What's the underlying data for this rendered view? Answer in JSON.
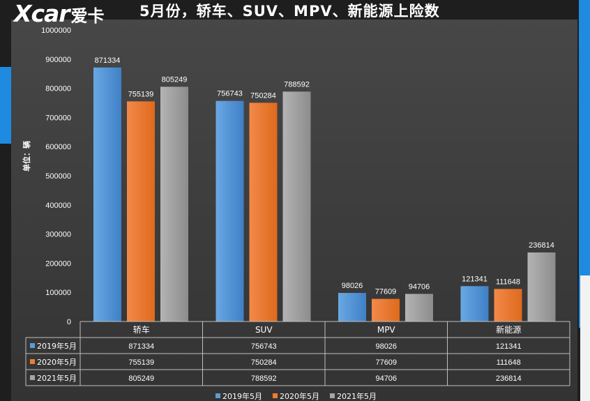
{
  "header": {
    "logo_x": "Xcar",
    "logo_cn": "爱卡",
    "title": "5月份，轿车、SUV、MPV、新能源上险数"
  },
  "colors": {
    "series": [
      "#5b9bd5",
      "#ed7d31",
      "#a5a5a5"
    ],
    "background": "#3c3c3c",
    "text": "#ffffff"
  },
  "chart_data": {
    "type": "bar",
    "title": "",
    "ylabel": "单位：辆",
    "xlabel": "",
    "ylim": [
      0,
      1000000
    ],
    "yticks": [
      0,
      100000,
      200000,
      300000,
      400000,
      500000,
      600000,
      700000,
      800000,
      900000,
      1000000
    ],
    "categories": [
      "轿车",
      "SUV",
      "MPV",
      "新能源"
    ],
    "series": [
      {
        "name": "2019年5月",
        "values": [
          871334,
          756743,
          98026,
          121341
        ]
      },
      {
        "name": "2020年5月",
        "values": [
          755139,
          750284,
          77609,
          111648
        ]
      },
      {
        "name": "2021年5月",
        "values": [
          805249,
          788592,
          94706,
          236814
        ]
      }
    ],
    "grid": false,
    "data_table": true,
    "legend_position": "bottom"
  }
}
